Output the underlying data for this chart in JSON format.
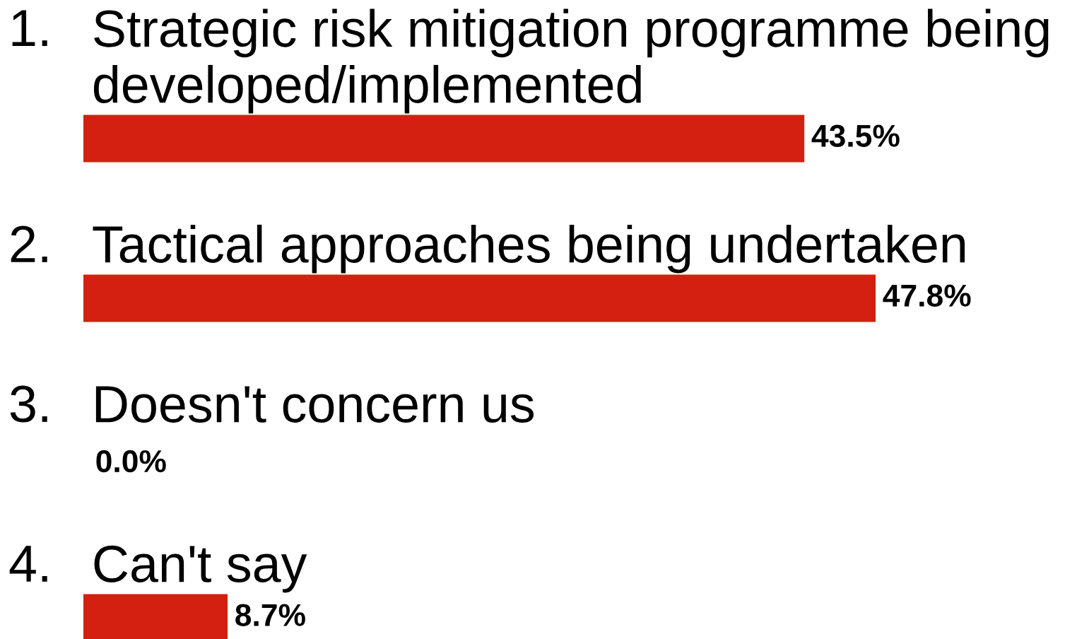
{
  "chart_data": {
    "type": "bar",
    "orientation": "horizontal",
    "categories": [
      "Strategic risk mitigation programme being developed/implemented",
      "Tactical approaches being undertaken",
      "Doesn't concern us",
      "Can't say"
    ],
    "values": [
      43.5,
      47.8,
      0.0,
      8.7
    ],
    "value_labels": [
      "43.5%",
      "47.8%",
      "0.0%",
      "8.7%"
    ],
    "annotations": [
      "1.",
      "2.",
      "3.",
      "4."
    ],
    "color": "#d42010"
  }
}
